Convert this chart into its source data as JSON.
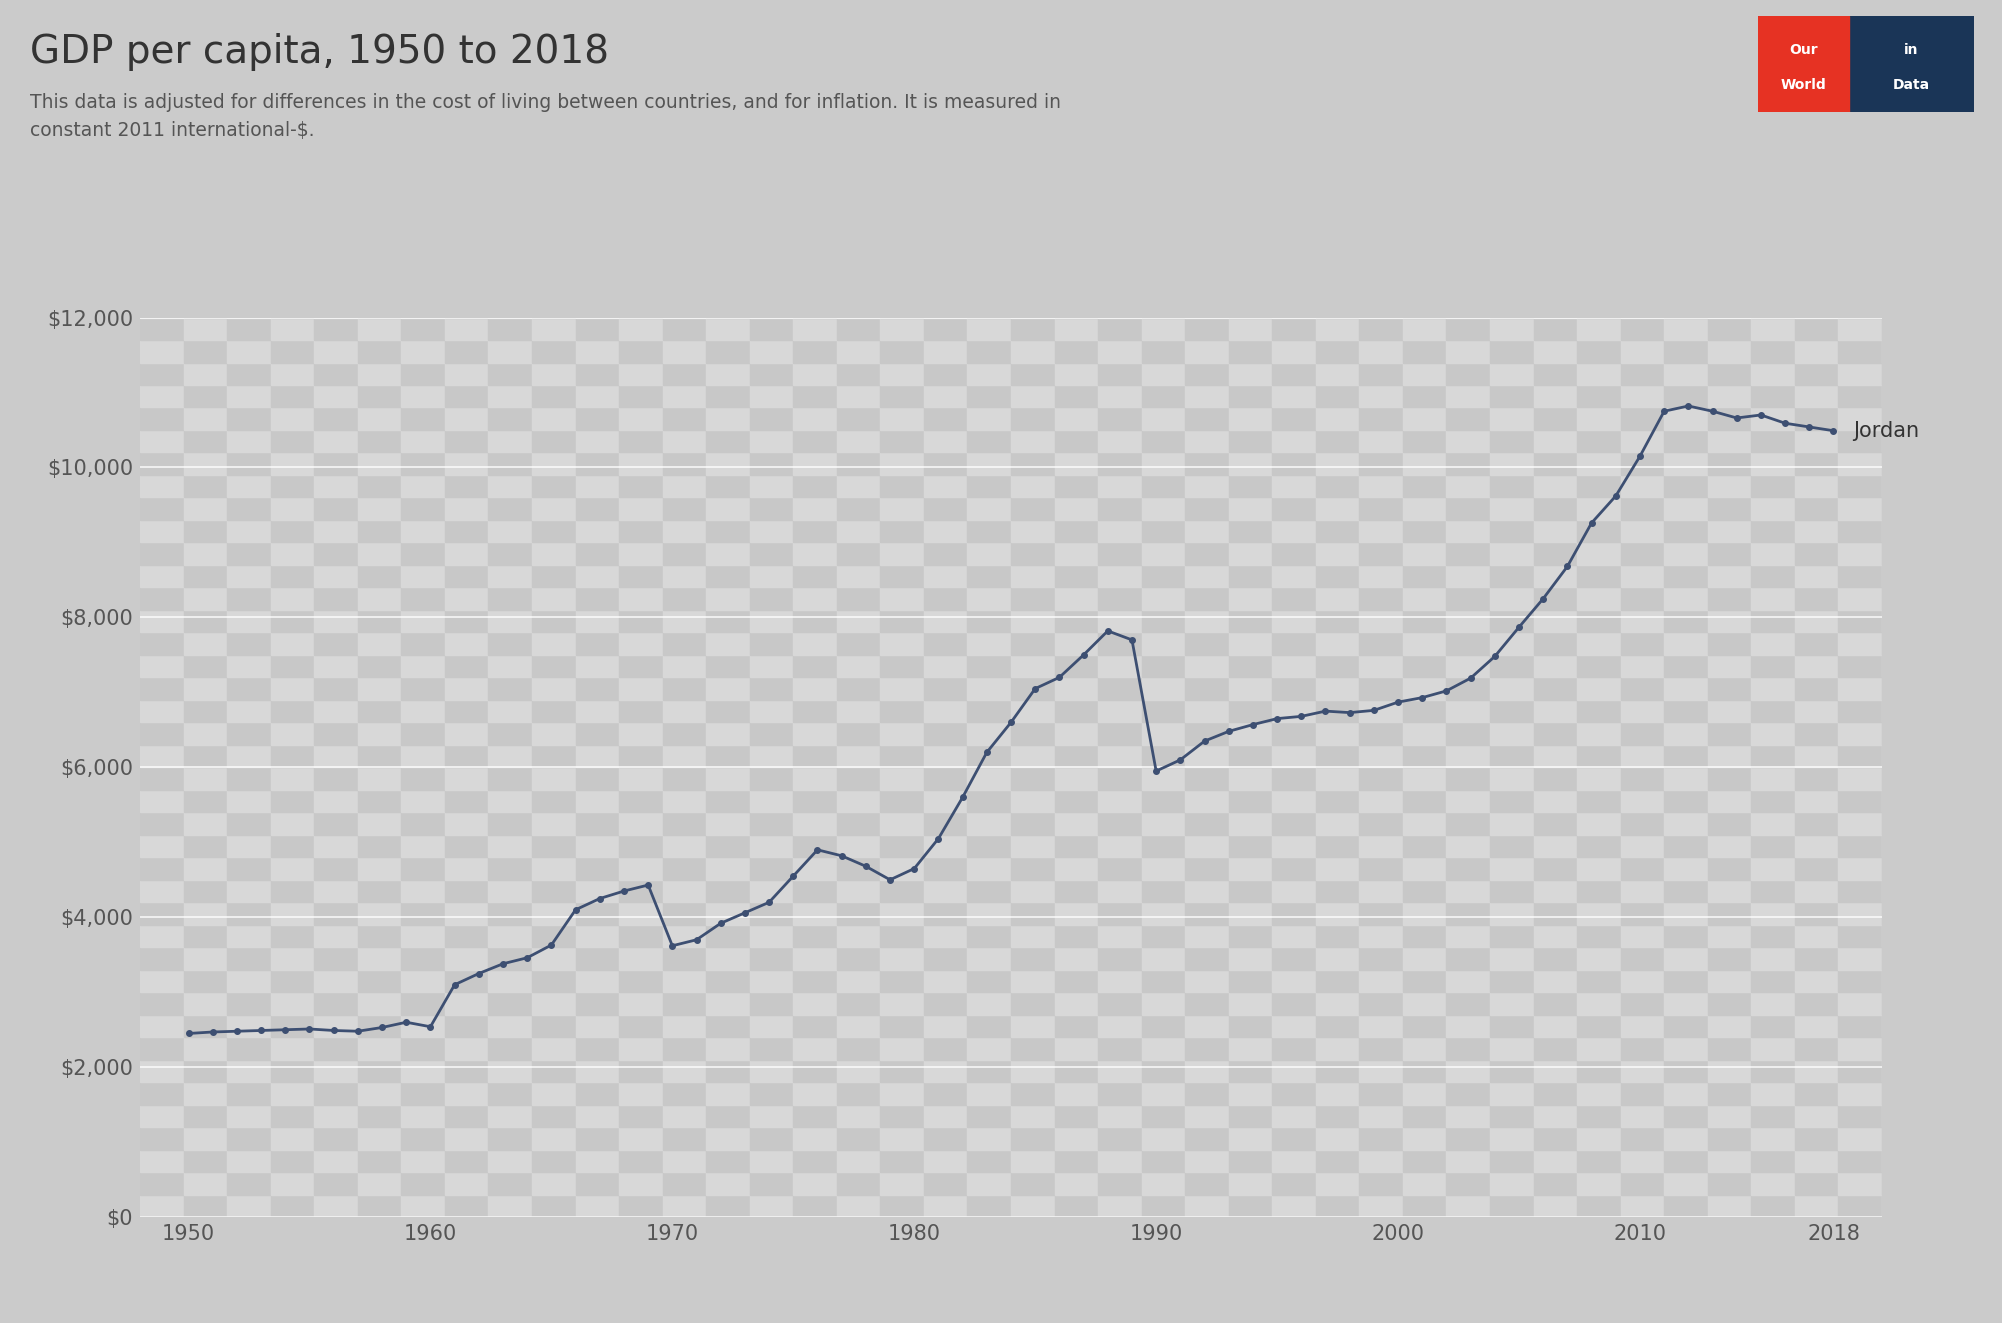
{
  "title": "GDP per capita, 1950 to 2018",
  "subtitle": "This data is adjusted for differences in the cost of living between countries, and for inflation. It is measured in\nconstant 2011 international-$.",
  "country_label": "Jordan",
  "line_color": "#3d4f72",
  "background_color": "#cbcbcb",
  "plot_bg_color": "#cbcbcb",
  "checker_color1": "#d4d4d4",
  "checker_color2": "#c2c2c2",
  "years": [
    1950,
    1951,
    1952,
    1953,
    1954,
    1955,
    1956,
    1957,
    1958,
    1959,
    1960,
    1961,
    1962,
    1963,
    1964,
    1965,
    1966,
    1967,
    1968,
    1969,
    1970,
    1971,
    1972,
    1973,
    1974,
    1975,
    1976,
    1977,
    1978,
    1979,
    1980,
    1981,
    1982,
    1983,
    1984,
    1985,
    1986,
    1987,
    1988,
    1989,
    1990,
    1991,
    1992,
    1993,
    1994,
    1995,
    1996,
    1997,
    1998,
    1999,
    2000,
    2001,
    2002,
    2003,
    2004,
    2005,
    2006,
    2007,
    2008,
    2009,
    2010,
    2011,
    2012,
    2013,
    2014,
    2015,
    2016,
    2017,
    2018
  ],
  "values": [
    2450,
    2470,
    2480,
    2490,
    2500,
    2510,
    2490,
    2480,
    2530,
    2600,
    2540,
    3100,
    3250,
    3380,
    3460,
    3630,
    4100,
    4250,
    4350,
    4430,
    3620,
    3700,
    3920,
    4060,
    4200,
    4550,
    4900,
    4820,
    4680,
    4500,
    4650,
    5050,
    5600,
    6200,
    6600,
    7050,
    7200,
    7500,
    7820,
    7700,
    5950,
    6100,
    6350,
    6480,
    6570,
    6650,
    6680,
    6750,
    6730,
    6760,
    6870,
    6930,
    7020,
    7190,
    7480,
    7870,
    8250,
    8680,
    9260,
    9620,
    10150,
    10750,
    10820,
    10750,
    10660,
    10700,
    10590,
    10540,
    10490
  ],
  "ylim": [
    0,
    12000
  ],
  "yticks": [
    0,
    2000,
    4000,
    6000,
    8000,
    10000,
    12000
  ],
  "ytick_labels": [
    "$0",
    "$2,000",
    "$4,000",
    "$6,000",
    "$8,000",
    "$10,000",
    "$12,000"
  ],
  "xticks": [
    1950,
    1960,
    1970,
    1980,
    1990,
    2000,
    2010,
    2018
  ],
  "owid_red": "#e63223",
  "owid_navy": "#1a3557",
  "title_fontsize": 28,
  "subtitle_fontsize": 13.5,
  "tick_fontsize": 15,
  "label_fontsize": 15,
  "grid_color": "#ffffff",
  "grid_alpha": 0.85
}
